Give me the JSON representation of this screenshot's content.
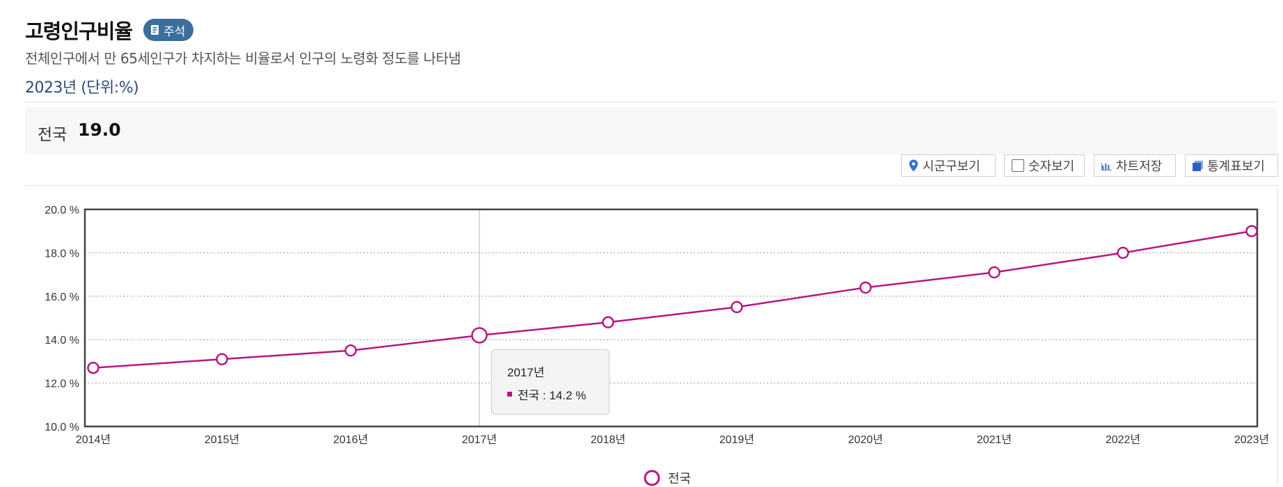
{
  "header": {
    "title": "고령인구비율",
    "note_label": "주석",
    "description": "전체인구에서 만 65세인구가 차지하는 비율로서 인구의 노령화 정도를 나타냄",
    "period": "2023년 (단위:%)"
  },
  "summary": {
    "label": "전국",
    "value": "19.0"
  },
  "toolbar": {
    "district_view": "시군구보기",
    "number_view": "숫자보기",
    "save_chart": "차트저장",
    "table_view": "통계표보기"
  },
  "colors": {
    "series": "#b5177f",
    "accent": "#2c4a78",
    "badge": "#3b6e9c"
  },
  "tooltip": {
    "title": "2017년",
    "text": "전국 : 14.2 %"
  },
  "chart_data": {
    "type": "line",
    "categories": [
      "2014년",
      "2015년",
      "2016년",
      "2017년",
      "2018년",
      "2019년",
      "2020년",
      "2021년",
      "2022년",
      "2023년"
    ],
    "series": [
      {
        "name": "전국",
        "values": [
          12.7,
          13.1,
          13.5,
          14.2,
          14.8,
          15.5,
          16.4,
          17.1,
          18.0,
          19.0
        ]
      }
    ],
    "y_ticks": [
      "10.0 %",
      "12.0 %",
      "14.0 %",
      "16.0 %",
      "18.0 %",
      "20.0 %"
    ],
    "ylim": [
      10,
      20
    ],
    "grid": "horizontal dotted",
    "highlighted_category": "2017년",
    "legend_position": "bottom"
  }
}
